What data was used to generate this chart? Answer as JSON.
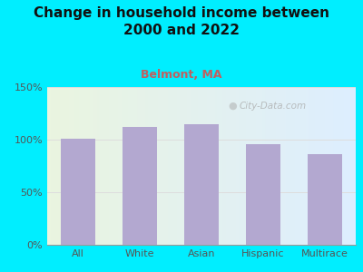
{
  "title": "Change in household income between\n2000 and 2022",
  "subtitle": "Belmont, MA",
  "categories": [
    "All",
    "White",
    "Asian",
    "Hispanic",
    "Multirace"
  ],
  "values": [
    101,
    112,
    115,
    96,
    86
  ],
  "bar_color": "#b3a8d0",
  "title_fontsize": 11,
  "subtitle_fontsize": 9,
  "subtitle_color": "#c06060",
  "title_color": "#111111",
  "background_outer": "#00eeff",
  "ylim": [
    0,
    150
  ],
  "yticks": [
    0,
    50,
    100,
    150
  ],
  "ytick_labels": [
    "0%",
    "50%",
    "100%",
    "150%"
  ],
  "watermark": "City-Data.com",
  "tick_color": "#555555",
  "grid_color": "#dddddd"
}
